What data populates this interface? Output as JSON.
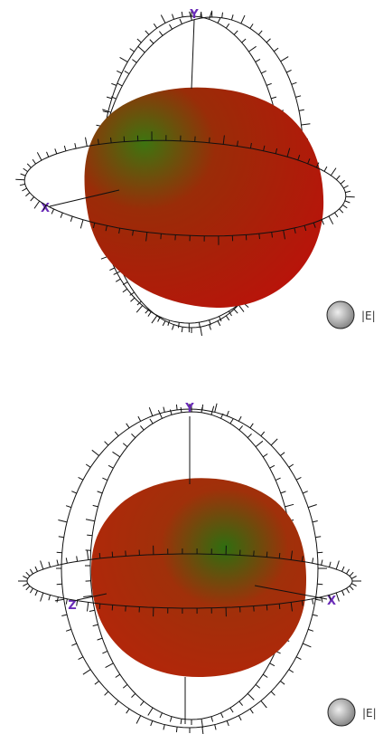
{
  "panels": [
    {
      "axis_labels": [
        "Y",
        "X"
      ],
      "legend": "|E|"
    },
    {
      "axis_labels": [
        "Y",
        "Z",
        "X"
      ],
      "legend": "|E|"
    }
  ]
}
